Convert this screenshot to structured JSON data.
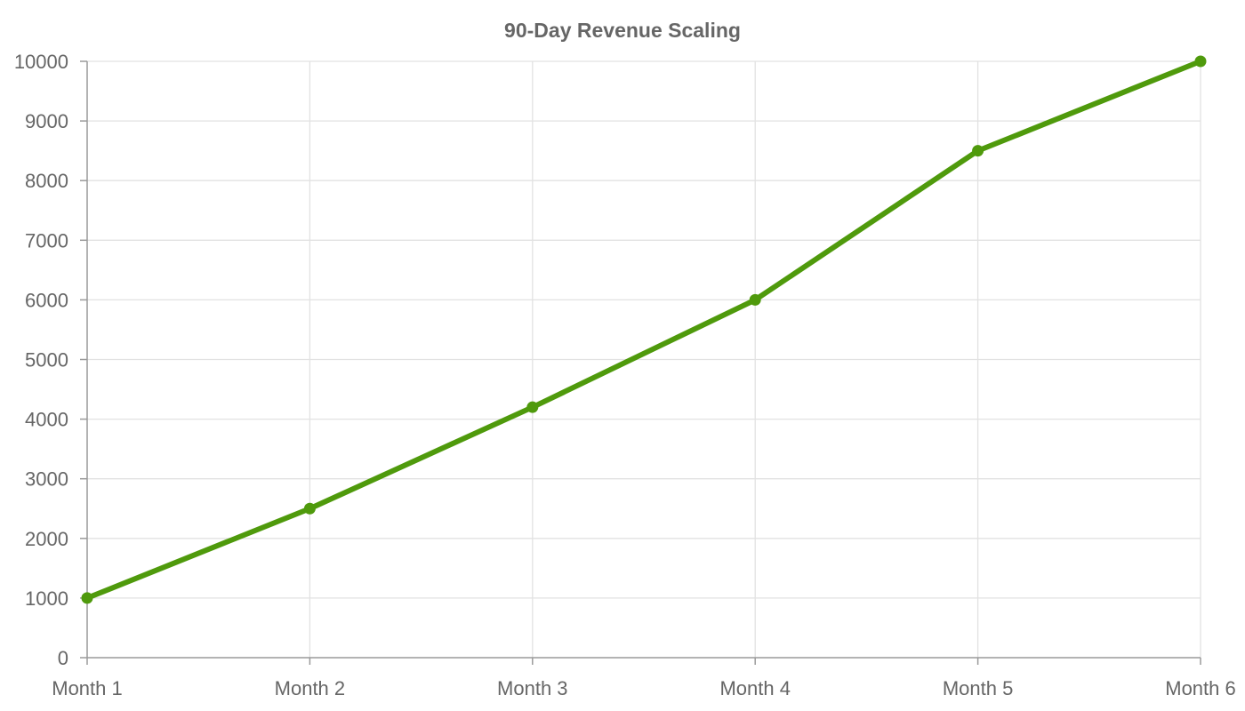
{
  "chart_data": {
    "type": "line",
    "title": "90-Day Revenue Scaling",
    "xlabel": "",
    "ylabel": "",
    "categories": [
      "Month 1",
      "Month 2",
      "Month 3",
      "Month 4",
      "Month 5",
      "Month 6"
    ],
    "series": [
      {
        "values": [
          1000,
          2500,
          4200,
          6000,
          8500,
          10000
        ],
        "color": "#4f9a0c"
      }
    ],
    "ylim": [
      0,
      10000
    ],
    "yticks": [
      0,
      1000,
      2000,
      3000,
      4000,
      5000,
      6000,
      7000,
      8000,
      9000,
      10000
    ],
    "grid": true,
    "legend": "none"
  }
}
